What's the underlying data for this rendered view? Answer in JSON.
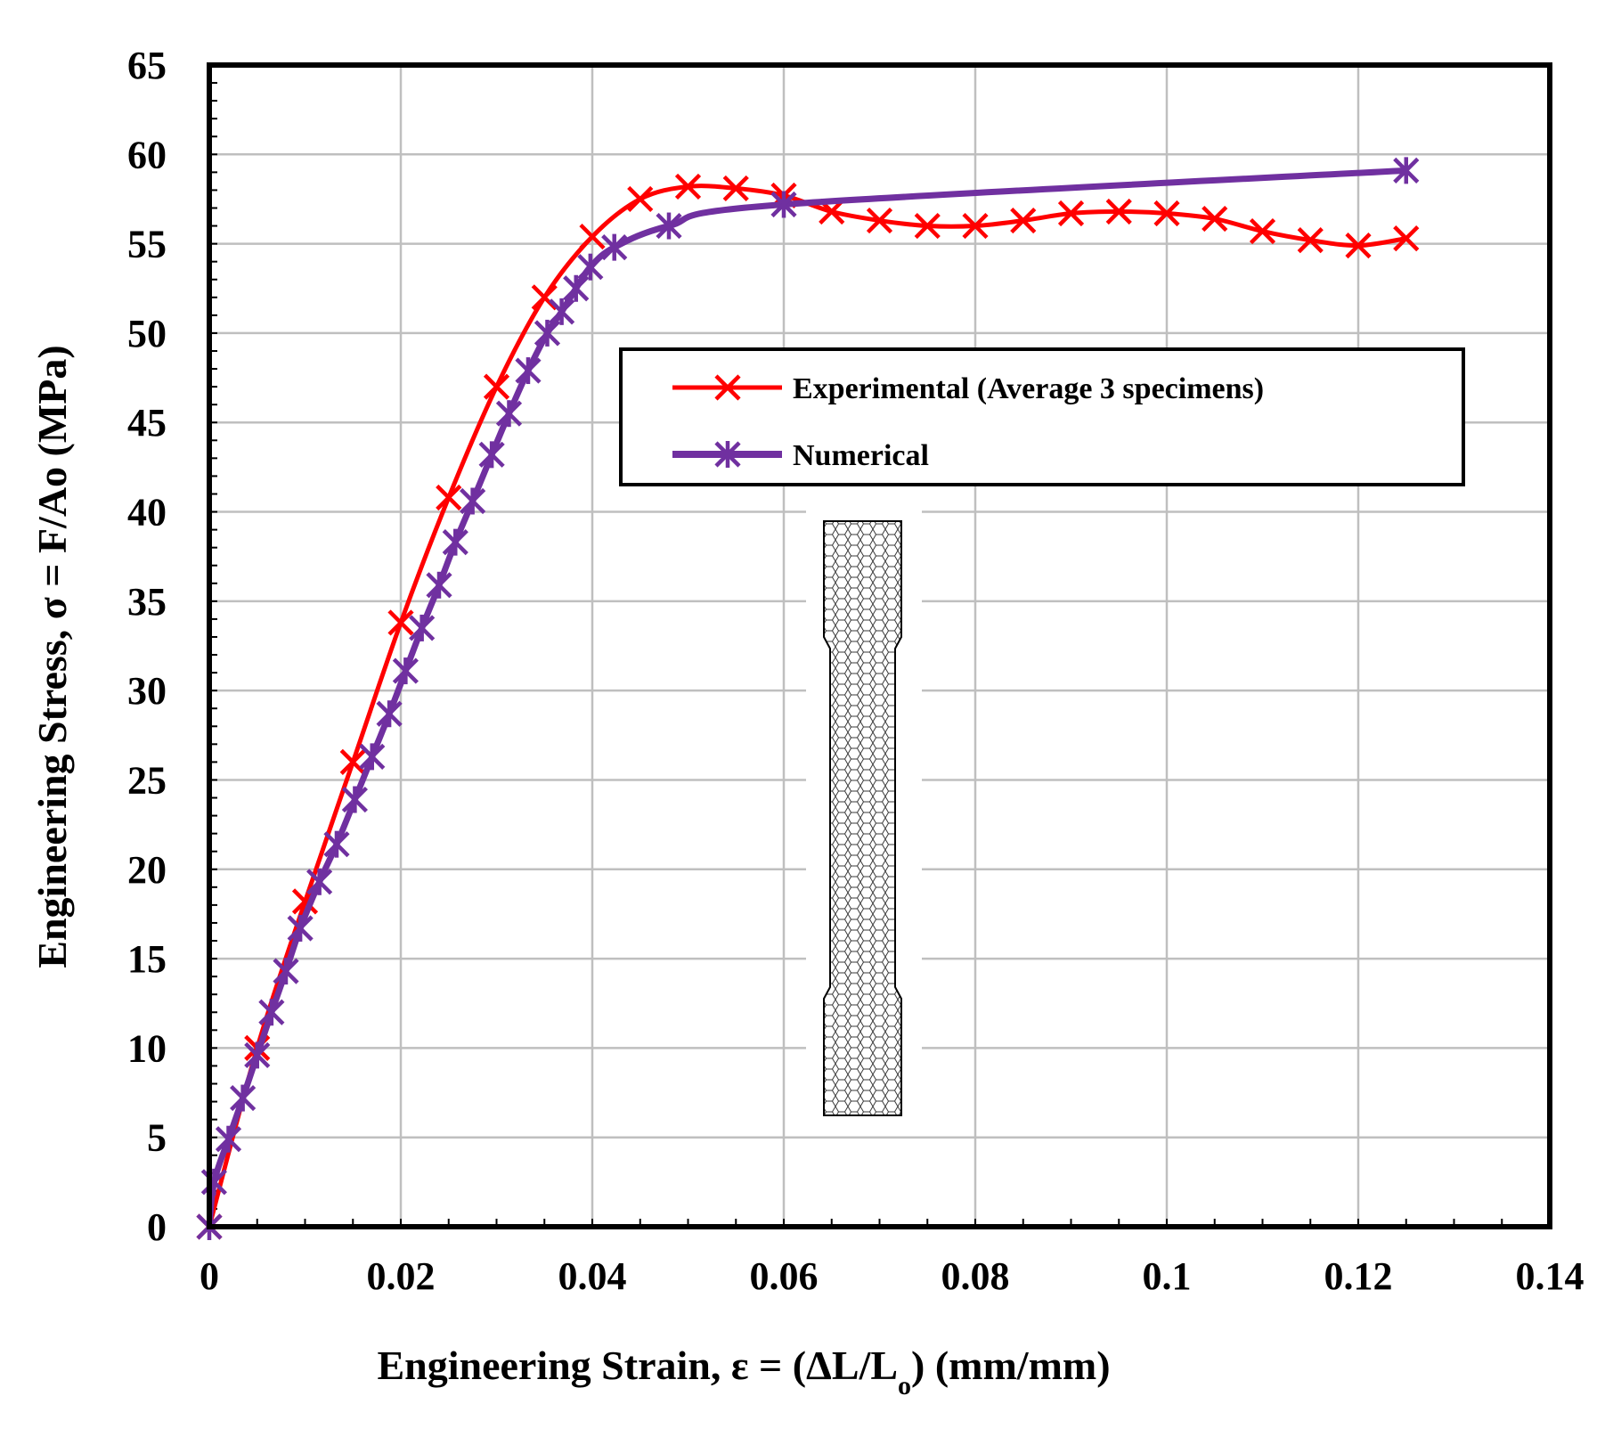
{
  "chart_data": {
    "type": "line",
    "title": "",
    "xlabel": "Engineering Strain, ε = (ΔL/L",
    "xlabel_sub": "o",
    "xlabel_tail": ") (mm/mm)",
    "ylabel": "Engineering Stress, σ = F/Ao (MPa)",
    "xlim": [
      0,
      0.14
    ],
    "ylim": [
      0,
      65
    ],
    "xticks": [
      0,
      0.02,
      0.04,
      0.06,
      0.08,
      0.1,
      0.12,
      0.14
    ],
    "xtick_labels": [
      "0",
      "0.02",
      "0.04",
      "0.06",
      "0.08",
      "0.1",
      "0.12",
      "0.14"
    ],
    "yticks": [
      0,
      5,
      10,
      15,
      20,
      25,
      30,
      35,
      40,
      45,
      50,
      55,
      60,
      65
    ],
    "ytick_labels": [
      "0",
      "5",
      "10",
      "15",
      "20",
      "25",
      "30",
      "35",
      "40",
      "45",
      "50",
      "55",
      "60",
      "65"
    ],
    "grid": true,
    "legend_position": "upper-center",
    "series": [
      {
        "name": "Experimental (Average 3 specimens)",
        "color": "#ff0000",
        "marker": "x",
        "x": [
          0,
          0.005,
          0.01,
          0.015,
          0.02,
          0.025,
          0.03,
          0.035,
          0.04,
          0.045,
          0.05,
          0.055,
          0.06,
          0.065,
          0.07,
          0.075,
          0.08,
          0.085,
          0.09,
          0.095,
          0.1,
          0.105,
          0.11,
          0.115,
          0.12,
          0.125
        ],
        "y": [
          0,
          10,
          18.2,
          26,
          33.8,
          40.8,
          47,
          52,
          55.4,
          57.5,
          58.2,
          58.1,
          57.7,
          56.8,
          56.3,
          56,
          56,
          56.3,
          56.7,
          56.8,
          56.7,
          56.4,
          55.7,
          55.2,
          54.9,
          55.3
        ]
      },
      {
        "name": "Numerical",
        "color": "#7030a0",
        "marker": "star",
        "x": [
          0,
          0.0005,
          0.002,
          0.0035,
          0.005,
          0.0065,
          0.008,
          0.0095,
          0.0115,
          0.0133,
          0.0152,
          0.017,
          0.0188,
          0.0205,
          0.0222,
          0.024,
          0.0257,
          0.0275,
          0.0295,
          0.0313,
          0.0333,
          0.0353,
          0.0368,
          0.0383,
          0.0398,
          0.0423,
          0.048,
          0.06,
          0.125
        ],
        "y": [
          0,
          2.5,
          4.9,
          7.2,
          9.6,
          12,
          14.3,
          16.7,
          19.3,
          21.4,
          23.9,
          26.3,
          28.7,
          31.1,
          33.5,
          35.9,
          38.3,
          40.6,
          43.2,
          45.5,
          47.9,
          50,
          51.2,
          52.5,
          53.7,
          54.8,
          56,
          57.2,
          59.1
        ]
      }
    ]
  }
}
